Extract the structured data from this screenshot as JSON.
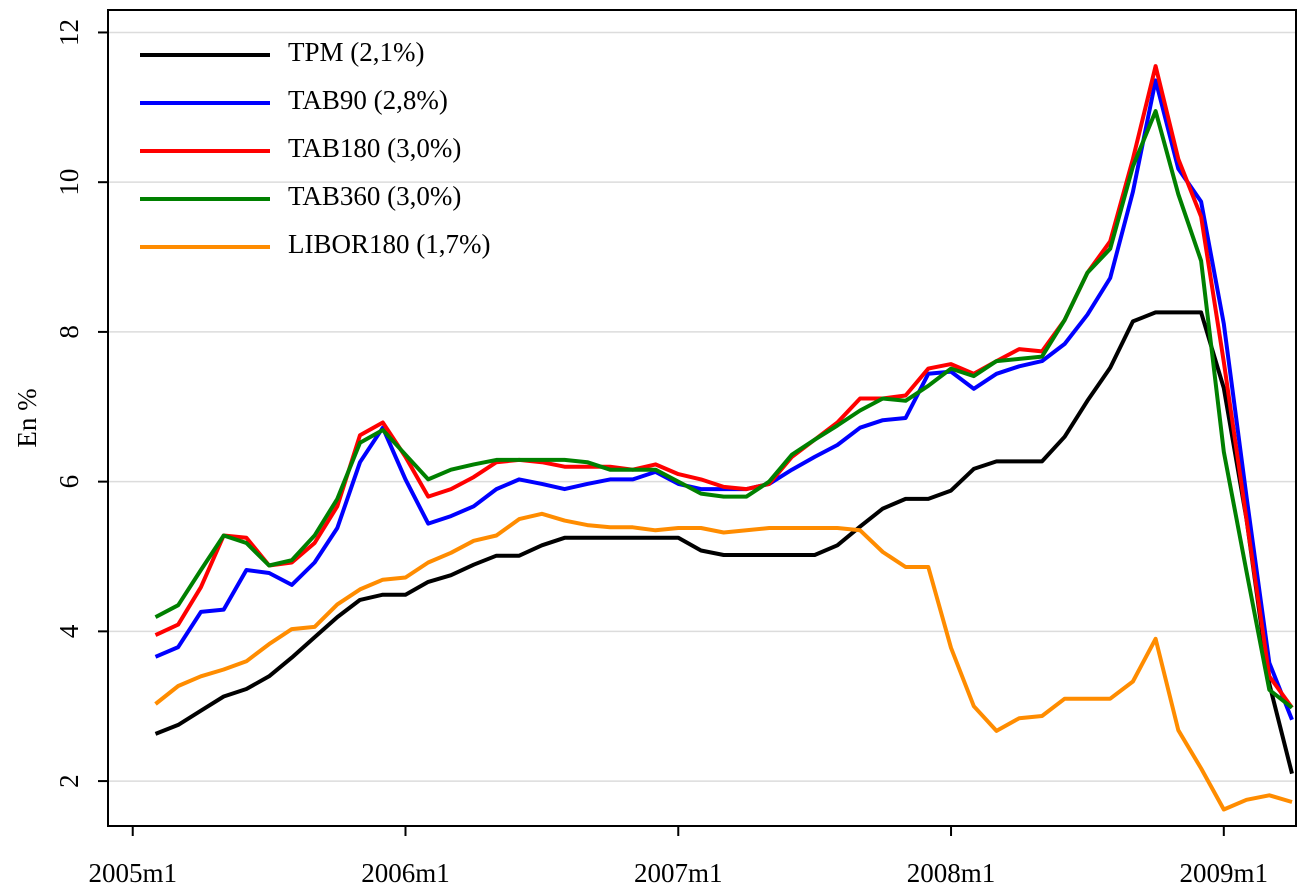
{
  "chart_data": {
    "type": "line",
    "ylabel": "En %",
    "x": [
      "2005m2",
      "2005m3",
      "2005m4",
      "2005m5",
      "2005m6",
      "2005m7",
      "2005m8",
      "2005m9",
      "2005m10",
      "2005m11",
      "2005m12",
      "2006m1",
      "2006m2",
      "2006m3",
      "2006m4",
      "2006m5",
      "2006m6",
      "2006m7",
      "2006m8",
      "2006m9",
      "2006m10",
      "2006m11",
      "2006m12",
      "2007m1",
      "2007m2",
      "2007m3",
      "2007m4",
      "2007m5",
      "2007m6",
      "2007m7",
      "2007m8",
      "2007m9",
      "2007m10",
      "2007m11",
      "2007m12",
      "2008m1",
      "2008m2",
      "2008m3",
      "2008m4",
      "2008m5",
      "2008m6",
      "2008m7",
      "2008m8",
      "2008m9",
      "2008m10",
      "2008m11",
      "2008m12",
      "2009m1",
      "2009m2",
      "2009m3",
      "2009m4"
    ],
    "xlim": [
      "2004m12",
      "2009m4"
    ],
    "xticks": [
      "2005m1",
      "2006m1",
      "2007m1",
      "2008m1",
      "2009m1"
    ],
    "ylim": [
      1.4,
      12.3
    ],
    "yticks": [
      2,
      4,
      6,
      8,
      10,
      12
    ],
    "grid": true,
    "legend": "top-left",
    "series": [
      {
        "name": "TPM (2,1%)",
        "color": "#000000",
        "values": [
          2.63,
          2.75,
          2.94,
          3.13,
          3.23,
          3.4,
          3.65,
          3.92,
          4.19,
          4.42,
          4.49,
          4.49,
          4.66,
          4.75,
          4.89,
          5.01,
          5.01,
          5.15,
          5.25,
          5.25,
          5.25,
          5.25,
          5.25,
          5.25,
          5.08,
          5.02,
          5.02,
          5.02,
          5.02,
          5.02,
          5.15,
          5.4,
          5.64,
          5.77,
          5.77,
          5.88,
          6.17,
          6.27,
          6.27,
          6.27,
          6.6,
          7.08,
          7.52,
          8.14,
          8.26,
          8.26,
          8.26,
          7.25,
          5.5,
          3.3,
          2.1
        ]
      },
      {
        "name": "TAB90 (2,8%)",
        "color": "#0000ff",
        "values": [
          3.66,
          3.79,
          4.26,
          4.29,
          4.82,
          4.78,
          4.62,
          4.92,
          5.38,
          6.26,
          6.72,
          6.03,
          5.44,
          5.54,
          5.67,
          5.9,
          6.03,
          5.97,
          5.9,
          5.97,
          6.03,
          6.03,
          6.13,
          5.97,
          5.9,
          5.9,
          5.9,
          5.97,
          6.16,
          6.33,
          6.49,
          6.72,
          6.82,
          6.85,
          7.44,
          7.47,
          7.24,
          7.44,
          7.54,
          7.61,
          7.84,
          8.23,
          8.72,
          9.87,
          11.36,
          10.18,
          9.74,
          8.11,
          5.8,
          3.58,
          2.82
        ]
      },
      {
        "name": "TAB180 (3,0%)",
        "color": "#ff0000",
        "values": [
          3.95,
          4.09,
          4.59,
          5.28,
          5.25,
          4.88,
          4.92,
          5.18,
          5.67,
          6.62,
          6.79,
          6.33,
          5.8,
          5.9,
          6.06,
          6.26,
          6.29,
          6.26,
          6.2,
          6.2,
          6.2,
          6.16,
          6.23,
          6.1,
          6.03,
          5.93,
          5.9,
          5.97,
          6.33,
          6.56,
          6.79,
          7.11,
          7.11,
          7.15,
          7.51,
          7.57,
          7.44,
          7.61,
          7.77,
          7.74,
          8.16,
          8.79,
          9.21,
          10.31,
          11.55,
          10.31,
          9.54,
          7.6,
          5.5,
          3.4,
          2.98
        ]
      },
      {
        "name": "TAB360 (3,0%)",
        "color": "#008000",
        "values": [
          4.19,
          4.35,
          4.82,
          5.28,
          5.18,
          4.88,
          4.95,
          5.28,
          5.77,
          6.52,
          6.69,
          6.36,
          6.03,
          6.16,
          6.23,
          6.29,
          6.29,
          6.29,
          6.29,
          6.26,
          6.16,
          6.16,
          6.16,
          6.0,
          5.84,
          5.8,
          5.8,
          6.0,
          6.36,
          6.56,
          6.75,
          6.95,
          7.11,
          7.08,
          7.28,
          7.51,
          7.41,
          7.61,
          7.64,
          7.67,
          8.16,
          8.79,
          9.11,
          10.21,
          10.95,
          9.84,
          8.95,
          6.4,
          4.8,
          3.22,
          2.98
        ]
      },
      {
        "name": "LIBOR180 (1,7%)",
        "color": "#ff8c00",
        "values": [
          3.03,
          3.27,
          3.4,
          3.49,
          3.6,
          3.83,
          4.03,
          4.06,
          4.36,
          4.56,
          4.69,
          4.72,
          4.92,
          5.05,
          5.21,
          5.28,
          5.5,
          5.57,
          5.48,
          5.42,
          5.39,
          5.39,
          5.35,
          5.38,
          5.38,
          5.32,
          5.35,
          5.38,
          5.38,
          5.38,
          5.38,
          5.35,
          5.06,
          4.86,
          4.86,
          3.78,
          3.0,
          2.67,
          2.84,
          2.87,
          3.1,
          3.1,
          3.1,
          3.33,
          3.9,
          2.68,
          2.17,
          1.62,
          1.75,
          1.81,
          1.72
        ]
      }
    ]
  }
}
